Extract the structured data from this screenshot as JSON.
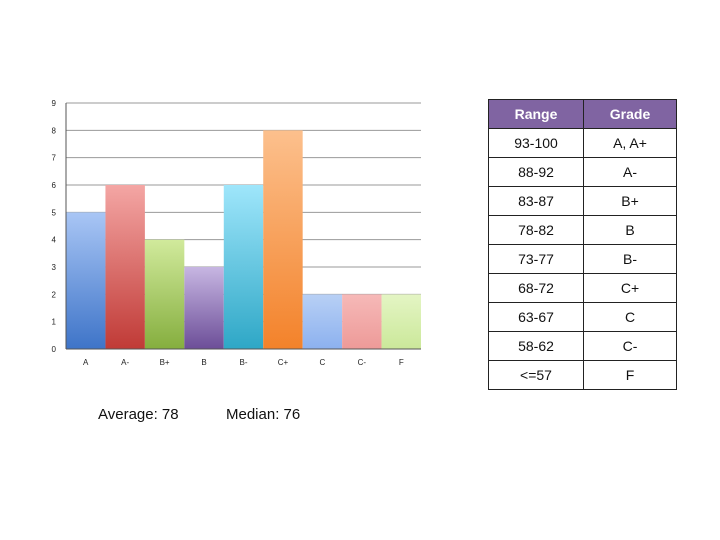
{
  "chart_data": {
    "type": "bar",
    "categories": [
      "A",
      "A-",
      "B+",
      "B",
      "B-",
      "C+",
      "C",
      "C-",
      "F"
    ],
    "values": [
      5,
      6,
      4,
      3,
      6,
      8,
      2,
      2,
      2
    ],
    "ylim": [
      0,
      9
    ],
    "yticks": [
      0,
      1,
      2,
      3,
      4,
      5,
      6,
      7,
      8,
      9
    ],
    "grid": true,
    "colors": [
      [
        "#a9c6f5",
        "#3e74c8"
      ],
      [
        "#f4a6a4",
        "#c03a36"
      ],
      [
        "#d1ea9c",
        "#85ae3e"
      ],
      [
        "#c7b6e2",
        "#6c4e98"
      ],
      [
        "#9fe6fb",
        "#2ea7c6"
      ],
      [
        "#fcc08d",
        "#f3822a"
      ],
      [
        "#b8d0f5",
        "#8cb1ef"
      ],
      [
        "#f6b9b8",
        "#ed9a98"
      ],
      [
        "#e4f5c4",
        "#cbe89a"
      ]
    ]
  },
  "stats": {
    "average": "Average: 78",
    "median": "Median: 76"
  },
  "grade_table": {
    "headers": [
      "Range",
      "Grade"
    ],
    "rows": [
      [
        "93-100",
        "A, A+"
      ],
      [
        "88-92",
        "A-"
      ],
      [
        "83-87",
        "B+"
      ],
      [
        "78-82",
        "B"
      ],
      [
        "73-77",
        "B-"
      ],
      [
        "68-72",
        "C+"
      ],
      [
        "63-67",
        "C"
      ],
      [
        "58-62",
        "C-"
      ],
      [
        "<=57",
        "F"
      ]
    ]
  }
}
